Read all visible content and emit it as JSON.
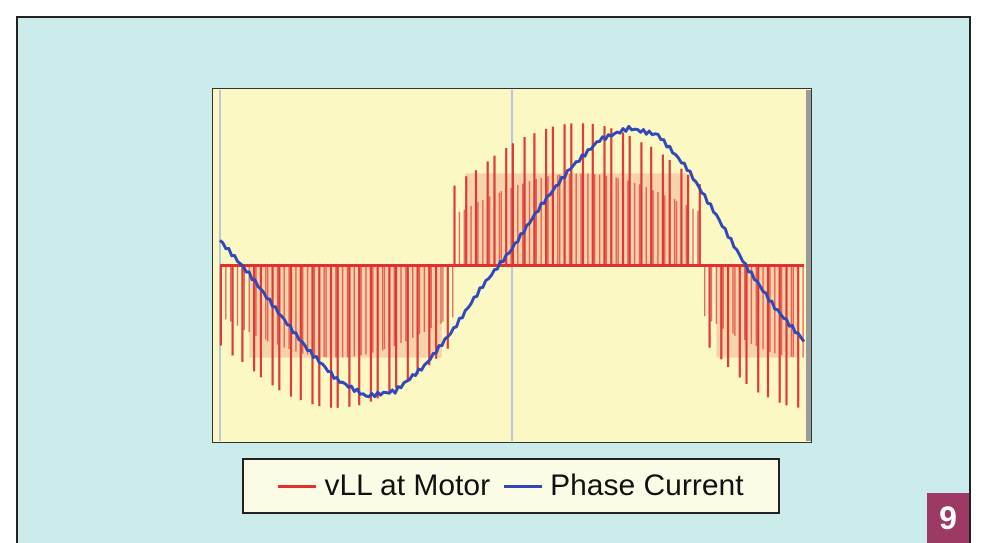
{
  "badge": "9",
  "colors": {
    "background": "#ccecec",
    "plot_bg": "#fbf8c4",
    "vll": "#e03030",
    "current": "#3048b8"
  },
  "chart_data": {
    "type": "line",
    "title": "",
    "xlabel": "",
    "ylabel": "",
    "grid": false,
    "legend": "bottom-center",
    "xlim": [
      0,
      1
    ],
    "ylim": [
      -1,
      1
    ],
    "series": [
      {
        "name": "vLL at Motor",
        "color": "#e03030",
        "style": "pwm-pulses",
        "levels": [
          -0.85,
          -0.55,
          0,
          0.55,
          0.85
        ]
      },
      {
        "name": "Phase Current",
        "color": "#3048b8",
        "x": [
          0,
          0.05,
          0.1,
          0.15,
          0.2,
          0.25,
          0.3,
          0.35,
          0.4,
          0.45,
          0.5,
          0.55,
          0.6,
          0.65,
          0.7,
          0.75,
          0.8,
          0.85,
          0.9,
          0.95,
          1
        ],
        "y": [
          0.15,
          -0.05,
          -0.28,
          -0.5,
          -0.68,
          -0.78,
          -0.75,
          -0.6,
          -0.38,
          -0.12,
          0.1,
          0.36,
          0.58,
          0.75,
          0.82,
          0.78,
          0.58,
          0.3,
          0.0,
          -0.25,
          -0.45
        ]
      }
    ]
  }
}
